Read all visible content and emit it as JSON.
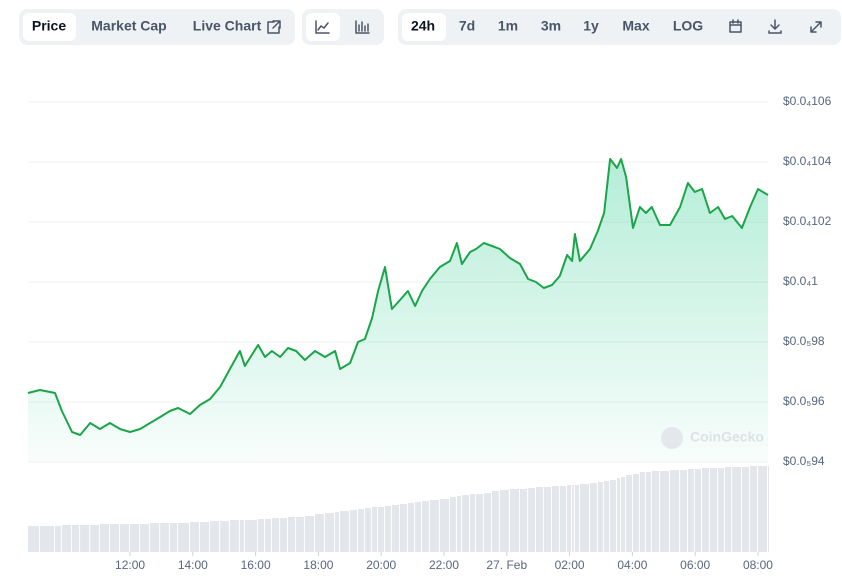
{
  "toolbar": {
    "view_tabs": [
      "Price",
      "Market Cap",
      "Live Chart"
    ],
    "ranges": [
      "24h",
      "7d",
      "1m",
      "3m",
      "1y",
      "Max",
      "LOG"
    ]
  },
  "watermark": "CoinGecko",
  "chart_data": {
    "type": "area",
    "x": [
      8.75,
      9.13,
      9.61,
      9.83,
      10.15,
      10.41,
      10.73,
      11.04,
      11.36,
      11.68,
      12.0,
      12.32,
      12.64,
      12.96,
      13.27,
      13.53,
      13.91,
      14.23,
      14.55,
      14.87,
      15.18,
      15.5,
      15.66,
      16.08,
      16.3,
      16.52,
      16.78,
      17.03,
      17.29,
      17.57,
      17.89,
      18.21,
      18.53,
      18.69,
      19.01,
      19.26,
      19.48,
      19.71,
      19.9,
      20.12,
      20.34,
      20.6,
      20.85,
      21.08,
      21.3,
      21.55,
      21.87,
      22.19,
      22.41,
      22.57,
      22.83,
      23.02,
      23.27,
      23.53,
      23.78,
      24.1,
      24.42,
      24.68,
      24.93,
      25.18,
      25.44,
      25.69,
      25.92,
      26.08,
      26.17,
      26.33,
      26.65,
      26.9,
      27.1,
      27.29,
      27.51,
      27.64,
      27.8,
      28.02,
      28.24,
      28.43,
      28.62,
      28.88,
      29.2,
      29.52,
      29.77,
      29.99,
      30.22,
      30.47,
      30.73,
      30.95,
      31.18,
      31.49,
      31.75,
      32.0,
      32.32
    ],
    "series": [
      {
        "name": "Price",
        "color": "#1ba549",
        "values": [
          9.63e-06,
          9.64e-06,
          9.63e-06,
          9.57e-06,
          9.5e-06,
          9.49e-06,
          9.53e-06,
          9.51e-06,
          9.53e-06,
          9.51e-06,
          9.5e-06,
          9.51e-06,
          9.53e-06,
          9.55e-06,
          9.57e-06,
          9.58e-06,
          9.56e-06,
          9.59e-06,
          9.61e-06,
          9.65e-06,
          9.71e-06,
          9.77e-06,
          9.72e-06,
          9.79e-06,
          9.75e-06,
          9.77e-06,
          9.75e-06,
          9.78e-06,
          9.77e-06,
          9.74e-06,
          9.77e-06,
          9.75e-06,
          9.77e-06,
          9.71e-06,
          9.73e-06,
          9.8e-06,
          9.81e-06,
          9.88e-06,
          9.97e-06,
          1.005e-05,
          9.91e-06,
          9.94e-06,
          9.97e-06,
          9.92e-06,
          9.97e-06,
          1.001e-05,
          1.005e-05,
          1.007e-05,
          1.013e-05,
          1.006e-05,
          1.01e-05,
          1.011e-05,
          1.013e-05,
          1.012e-05,
          1.011e-05,
          1.008e-05,
          1.006e-05,
          1.001e-05,
          1e-05,
          9.98e-06,
          9.99e-06,
          1.002e-05,
          1.009e-05,
          1.007e-05,
          1.016e-05,
          1.007e-05,
          1.011e-05,
          1.017e-05,
          1.023e-05,
          1.041e-05,
          1.038e-05,
          1.041e-05,
          1.035e-05,
          1.018e-05,
          1.025e-05,
          1.023e-05,
          1.025e-05,
          1.019e-05,
          1.019e-05,
          1.025e-05,
          1.033e-05,
          1.03e-05,
          1.031e-05,
          1.023e-05,
          1.025e-05,
          1.021e-05,
          1.022e-05,
          1.018e-05,
          1.025e-05,
          1.031e-05,
          1.029e-05
        ]
      },
      {
        "name": "Volume",
        "color": "#e3e6ea",
        "values": [
          26,
          26,
          26,
          27,
          27,
          27,
          27,
          28,
          28,
          28,
          28,
          28,
          29,
          29,
          29,
          29,
          30,
          30,
          31,
          31,
          32,
          32,
          32,
          33,
          33,
          34,
          34,
          35,
          35,
          36,
          38,
          39,
          40,
          41,
          42,
          43,
          44,
          45,
          45,
          46,
          47,
          48,
          49,
          50,
          51,
          52,
          53,
          55,
          56,
          57,
          58,
          58,
          59,
          61,
          62,
          63,
          63,
          64,
          65,
          65,
          66,
          66,
          67,
          67,
          67,
          68,
          69,
          70,
          71,
          72,
          74,
          75,
          77,
          78,
          80,
          80,
          81,
          81,
          82,
          82,
          83,
          83,
          84,
          84,
          84,
          85,
          85,
          85,
          86,
          86,
          86
        ]
      }
    ],
    "ylim": [
      9.4e-06,
      1.06e-05
    ],
    "yticks": [
      {
        "value": 9.4e-06,
        "label": "$0.0₅94"
      },
      {
        "value": 9.6e-06,
        "label": "$0.0₅96"
      },
      {
        "value": 9.8e-06,
        "label": "$0.0₅98"
      },
      {
        "value": 1e-05,
        "label": "$0.0₄1"
      },
      {
        "value": 1.02e-05,
        "label": "$0.0₄102"
      },
      {
        "value": 1.04e-05,
        "label": "$0.0₄104"
      },
      {
        "value": 1.06e-05,
        "label": "$0.0₄106"
      }
    ],
    "xlim": [
      8.75,
      32.32
    ],
    "xticks": [
      {
        "value": 12,
        "label": "12:00"
      },
      {
        "value": 14,
        "label": "14:00"
      },
      {
        "value": 16,
        "label": "16:00"
      },
      {
        "value": 18,
        "label": "18:00"
      },
      {
        "value": 20,
        "label": "20:00"
      },
      {
        "value": 22,
        "label": "22:00"
      },
      {
        "value": 24,
        "label": "27. Feb"
      },
      {
        "value": 26,
        "label": "02:00"
      },
      {
        "value": 28,
        "label": "04:00"
      },
      {
        "value": 30,
        "label": "06:00"
      },
      {
        "value": 32,
        "label": "08:00"
      }
    ],
    "grid": true
  }
}
